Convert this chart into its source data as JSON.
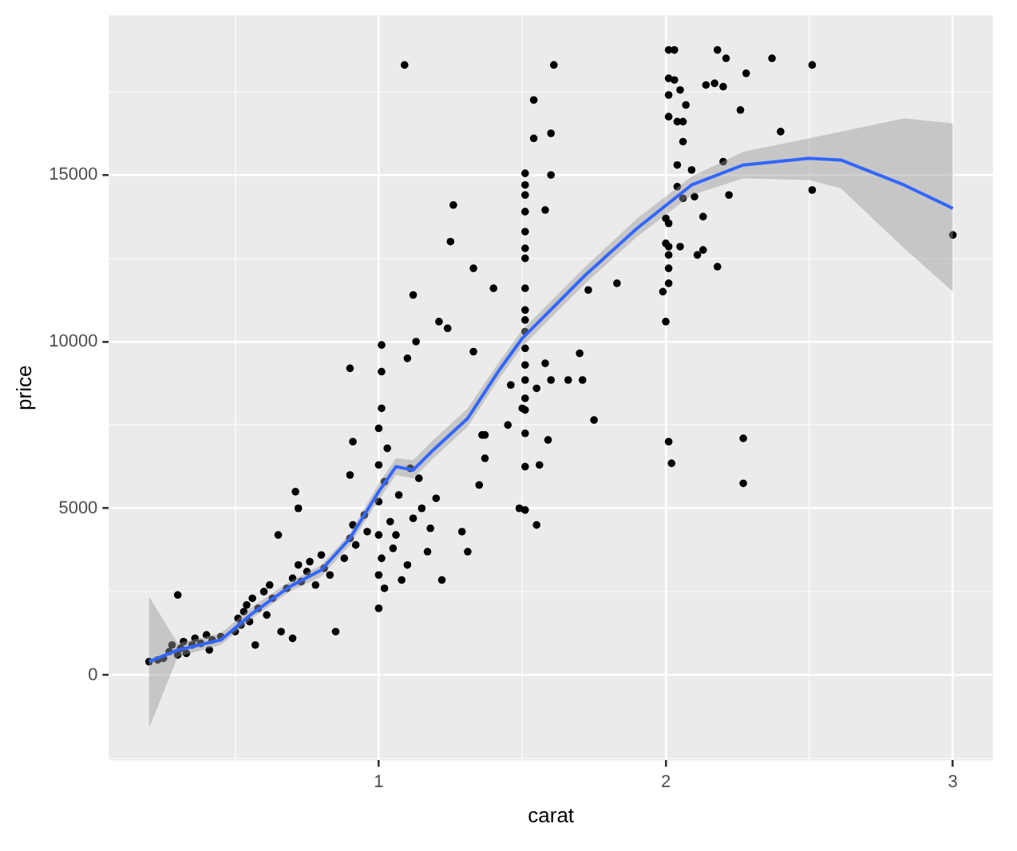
{
  "chart_data": {
    "type": "scatter",
    "xlabel": "carat",
    "ylabel": "price",
    "xlim": [
      0.06,
      3.14
    ],
    "ylim": [
      -2560,
      19790
    ],
    "xticks": [
      {
        "value": 0.5,
        "label": null
      },
      1,
      {
        "value": 1.5,
        "label": null
      },
      2,
      {
        "value": 2.5,
        "label": null
      },
      3
    ],
    "yticks": [
      {
        "value": -2500,
        "label": null
      },
      0,
      {
        "value": 2500,
        "label": null
      },
      5000,
      {
        "value": 7500,
        "label": null
      },
      10000,
      {
        "value": 12500,
        "label": null
      },
      15000,
      {
        "value": 17500,
        "label": null
      }
    ],
    "grid": true,
    "marker": "circle",
    "series": [
      {
        "color": "#000000",
        "x": [
          0.2,
          0.23,
          0.25,
          0.27,
          0.28,
          0.3,
          0.3,
          0.31,
          0.32,
          0.33,
          0.35,
          0.36,
          0.38,
          0.4,
          0.41,
          0.42,
          0.45,
          0.5,
          0.51,
          0.52,
          0.53,
          0.54,
          0.55,
          0.56,
          0.57,
          0.58,
          0.6,
          0.61,
          0.62,
          0.63,
          0.65,
          0.66,
          0.68,
          0.7,
          0.7,
          0.71,
          0.72,
          0.72,
          0.73,
          0.75,
          0.76,
          0.78,
          0.8,
          0.81,
          0.83,
          0.85,
          0.88,
          0.9,
          0.9,
          0.9,
          0.91,
          0.91,
          0.92,
          0.95,
          0.96,
          1.0,
          1.0,
          1.0,
          1.0,
          1.0,
          1.0,
          1.01,
          1.01,
          1.01,
          1.01,
          1.02,
          1.02,
          1.03,
          1.04,
          1.05,
          1.06,
          1.07,
          1.08,
          1.09,
          1.1,
          1.1,
          1.11,
          1.12,
          1.12,
          1.13,
          1.14,
          1.15,
          1.17,
          1.18,
          1.2,
          1.21,
          1.22,
          1.24,
          1.25,
          1.26,
          1.29,
          1.31,
          1.33,
          1.33,
          1.35,
          1.36,
          1.37,
          1.37,
          1.4,
          1.45,
          1.46,
          1.49,
          1.5,
          1.51,
          1.51,
          1.51,
          1.51,
          1.51,
          1.51,
          1.51,
          1.51,
          1.51,
          1.51,
          1.51,
          1.51,
          1.51,
          1.51,
          1.51,
          1.51,
          1.51,
          1.51,
          1.51,
          1.54,
          1.54,
          1.55,
          1.55,
          1.56,
          1.58,
          1.58,
          1.59,
          1.6,
          1.6,
          1.6,
          1.61,
          1.66,
          1.7,
          1.71,
          1.73,
          1.75,
          1.83,
          1.99,
          2.0,
          2.0,
          2.0,
          2.01,
          2.01,
          2.01,
          2.01,
          2.01,
          2.01,
          2.01,
          2.01,
          2.01,
          2.01,
          2.02,
          2.03,
          2.03,
          2.04,
          2.04,
          2.04,
          2.05,
          2.05,
          2.06,
          2.06,
          2.06,
          2.07,
          2.09,
          2.1,
          2.11,
          2.13,
          2.13,
          2.14,
          2.17,
          2.18,
          2.18,
          2.2,
          2.2,
          2.21,
          2.22,
          2.26,
          2.27,
          2.27,
          2.28,
          2.37,
          2.4,
          2.51,
          2.51,
          3.0
        ],
        "values": [
          400,
          450,
          500,
          700,
          900,
          600,
          2400,
          800,
          1000,
          650,
          900,
          1100,
          950,
          1200,
          750,
          1050,
          1150,
          1300,
          1700,
          1500,
          1900,
          2100,
          1600,
          2300,
          900,
          2000,
          2500,
          1800,
          2700,
          2300,
          4200,
          1300,
          2600,
          1100,
          2900,
          5500,
          5000,
          3300,
          2800,
          3100,
          3400,
          2700,
          3600,
          3200,
          3000,
          1300,
          3500,
          4100,
          6000,
          9200,
          7000,
          4500,
          3900,
          4800,
          4300,
          2000,
          3000,
          4200,
          5200,
          6300,
          7400,
          8000,
          9100,
          9900,
          3500,
          2600,
          5800,
          6800,
          4600,
          3800,
          4200,
          5400,
          2850,
          18300,
          9500,
          3300,
          6200,
          11400,
          4700,
          10000,
          5900,
          5000,
          3700,
          4400,
          5300,
          10600,
          2850,
          10400,
          13000,
          14100,
          4300,
          3700,
          9700,
          12200,
          5700,
          7200,
          6500,
          7200,
          11600,
          7500,
          8700,
          5000,
          8000,
          15050,
          14700,
          14400,
          13900,
          13300,
          12800,
          12500,
          11600,
          10950,
          10650,
          10300,
          9800,
          9300,
          8850,
          8300,
          7950,
          7250,
          6250,
          4950,
          17250,
          16100,
          4500,
          8600,
          6300,
          9350,
          13950,
          7050,
          16250,
          15000,
          8850,
          18300,
          8850,
          9650,
          8850,
          11550,
          7650,
          11750,
          11500,
          10600,
          13700,
          12950,
          18750,
          17900,
          17400,
          16750,
          13550,
          12850,
          12600,
          12200,
          11750,
          7000,
          6350,
          18750,
          17850,
          15300,
          14650,
          16600,
          17550,
          12850,
          16600,
          16000,
          14300,
          17100,
          15150,
          14350,
          12600,
          13750,
          12750,
          17700,
          17750,
          18750,
          12250,
          17650,
          15400,
          18500,
          14400,
          16950,
          7100,
          5750,
          18050,
          18500,
          16300,
          18300,
          14550,
          13200
        ]
      },
      {
        "type": "line",
        "marker": "none",
        "color": "#3366ff",
        "x": [
          0.2,
          0.3,
          0.45,
          0.56,
          0.69,
          0.8,
          0.9,
          1.0,
          1.06,
          1.12,
          1.19,
          1.31,
          1.42,
          1.5,
          1.72,
          1.9,
          2.09,
          2.27,
          2.5,
          2.61,
          2.83,
          3.0
        ],
        "values": [
          400,
          750,
          1050,
          1850,
          2650,
          3150,
          4100,
          5500,
          6250,
          6150,
          6750,
          7700,
          9150,
          10100,
          12000,
          13400,
          14700,
          15300,
          15500,
          15450,
          14700,
          14000
        ],
        "lower": [
          -1600,
          550,
          900,
          1700,
          2500,
          2950,
          3900,
          5250,
          6000,
          5900,
          6500,
          7450,
          8900,
          9850,
          11750,
          13150,
          14400,
          14900,
          14850,
          14600,
          12800,
          11500
        ],
        "upper": [
          2350,
          950,
          1250,
          2050,
          2800,
          3300,
          4250,
          5750,
          6500,
          6450,
          7050,
          8000,
          9400,
          10350,
          12250,
          13700,
          14950,
          15700,
          16100,
          16300,
          16700,
          16550
        ]
      }
    ]
  }
}
